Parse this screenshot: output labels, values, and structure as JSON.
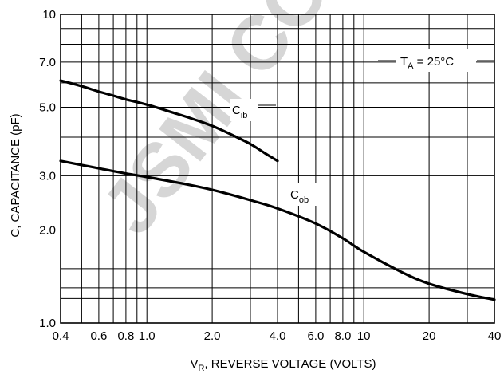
{
  "chart_data": {
    "type": "line",
    "xlabel": {
      "main": "V",
      "sub": "R",
      "rest": ", REVERSE VOLTAGE (VOLTS)"
    },
    "ylabel": "C, CAPACITANCE (pF)",
    "x_scale": "log",
    "y_scale": "log",
    "xlim": [
      0.4,
      40
    ],
    "ylim": [
      1.0,
      10
    ],
    "x_ticks": [
      {
        "value": 0.4,
        "label": "0.4"
      },
      {
        "value": 0.6,
        "label": "0.6"
      },
      {
        "value": 0.8,
        "label": "0.8"
      },
      {
        "value": 1.0,
        "label": "1.0"
      },
      {
        "value": 2.0,
        "label": "2.0"
      },
      {
        "value": 4.0,
        "label": "4.0"
      },
      {
        "value": 6.0,
        "label": "6.0"
      },
      {
        "value": 8.0,
        "label": "8.0"
      },
      {
        "value": 10,
        "label": "10"
      },
      {
        "value": 20,
        "label": "20"
      },
      {
        "value": 40,
        "label": "40"
      }
    ],
    "y_ticks": [
      {
        "value": 1.0,
        "label": "1.0"
      },
      {
        "value": 2.0,
        "label": "2.0"
      },
      {
        "value": 3.0,
        "label": "3.0"
      },
      {
        "value": 5.0,
        "label": "5.0"
      },
      {
        "value": 7.0,
        "label": "7.0"
      },
      {
        "value": 10,
        "label": "10"
      }
    ],
    "x_grid": [
      0.4,
      0.5,
      0.6,
      0.7,
      0.8,
      0.9,
      1,
      2,
      3,
      4,
      5,
      6,
      7,
      8,
      9,
      10,
      20,
      30,
      40
    ],
    "y_grid": [
      1,
      2,
      3,
      4,
      5,
      6,
      7,
      8,
      9,
      10
    ],
    "grid": true,
    "series": [
      {
        "name": {
          "main": "C",
          "sub": "ib"
        },
        "x": [
          0.4,
          0.5,
          0.6,
          0.7,
          0.8,
          1.0,
          1.3,
          1.6,
          2.0,
          2.5,
          3.0,
          3.5,
          4.0
        ],
        "y": [
          6.1,
          5.85,
          5.62,
          5.45,
          5.3,
          5.1,
          4.82,
          4.6,
          4.35,
          4.05,
          3.8,
          3.55,
          3.35
        ]
      },
      {
        "name": {
          "main": "C",
          "sub": "ob"
        },
        "x": [
          0.4,
          0.5,
          0.6,
          0.8,
          1.0,
          1.5,
          2.0,
          3.0,
          4.0,
          6.0,
          8.0,
          10,
          15,
          20,
          30,
          40
        ],
        "y": [
          3.35,
          3.25,
          3.17,
          3.05,
          2.97,
          2.82,
          2.7,
          2.5,
          2.35,
          2.1,
          1.88,
          1.7,
          1.46,
          1.34,
          1.24,
          1.19
        ]
      }
    ],
    "annotation": {
      "main": "T",
      "sub": "A",
      "rest": " = 25°C"
    },
    "watermark": "JSMI CO"
  }
}
